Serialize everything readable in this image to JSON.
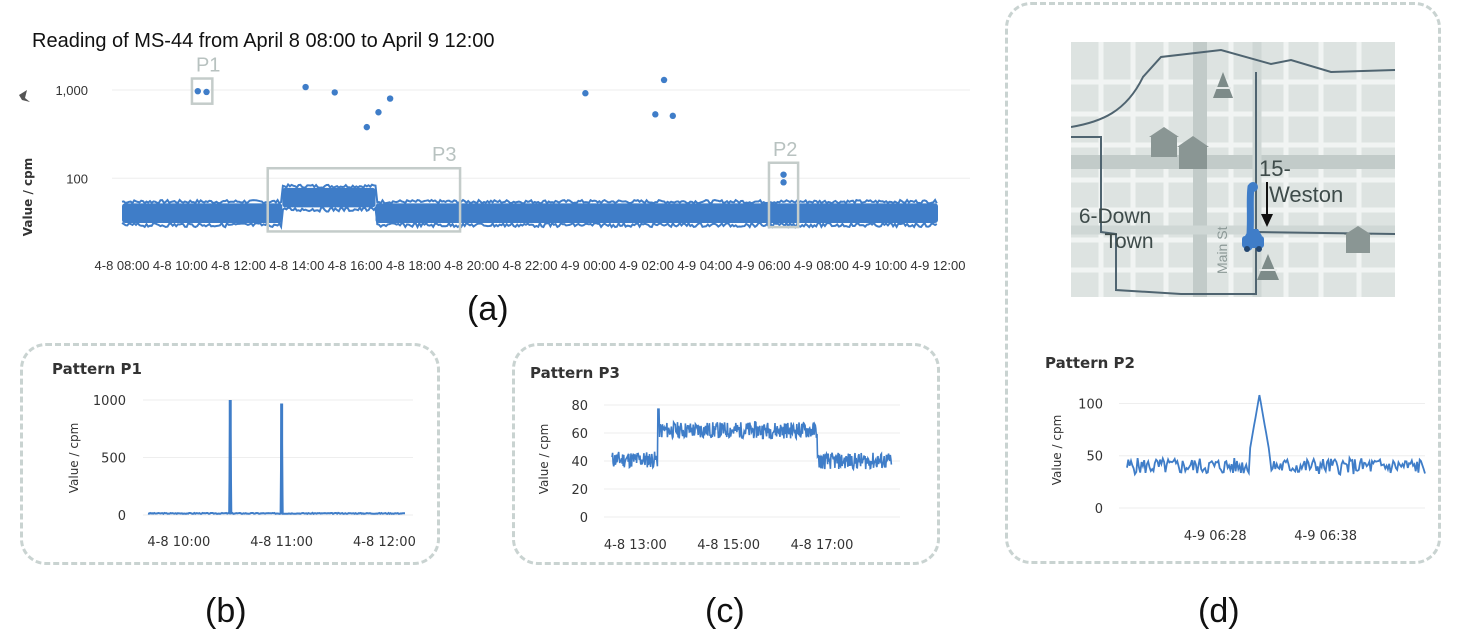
{
  "chart_data": [
    {
      "id": "a",
      "type": "scatter",
      "title": "Reading of MS-44 from April 8 08:00 to April 9 12:00",
      "ylabel": "Value / cpm",
      "y_scale": "log",
      "y_ticks": [
        "100",
        "1,000"
      ],
      "y_tick_values": [
        100,
        1000
      ],
      "x_ticks": [
        "4-8 08:00",
        "4-8 10:00",
        "4-8 12:00",
        "4-8 14:00",
        "4-8 16:00",
        "4-8 18:00",
        "4-8 20:00",
        "4-8 22:00",
        "4-9 00:00",
        "4-9 02:00",
        "4-9 04:00",
        "4-9 06:00",
        "4-9 08:00",
        "4-9 10:00",
        "4-9 12:00"
      ],
      "x_range_hours": [
        0,
        28
      ],
      "ylim": [
        20,
        1600
      ],
      "baseline": [
        {
          "from_hour": 0.0,
          "to_hour": 5.5,
          "value": 40
        },
        {
          "from_hour": 5.5,
          "to_hour": 8.7,
          "value": 60
        },
        {
          "from_hour": 8.7,
          "to_hour": 28.0,
          "value": 40
        }
      ],
      "outliers": [
        {
          "x_hour": 2.6,
          "y": 970
        },
        {
          "x_hour": 2.9,
          "y": 950
        },
        {
          "x_hour": 6.3,
          "y": 1080
        },
        {
          "x_hour": 7.3,
          "y": 940
        },
        {
          "x_hour": 8.4,
          "y": 380
        },
        {
          "x_hour": 8.8,
          "y": 560
        },
        {
          "x_hour": 9.2,
          "y": 800
        },
        {
          "x_hour": 15.9,
          "y": 920
        },
        {
          "x_hour": 18.3,
          "y": 530
        },
        {
          "x_hour": 18.6,
          "y": 1300
        },
        {
          "x_hour": 18.9,
          "y": 510
        },
        {
          "x_hour": 22.7,
          "y": 110
        },
        {
          "x_hour": 22.7,
          "y": 90
        }
      ],
      "highlight_boxes": [
        {
          "label": "P1",
          "from_hour": 2.4,
          "to_hour": 3.1,
          "y_low": 700,
          "y_high": 1350
        },
        {
          "label": "P3",
          "from_hour": 5.0,
          "to_hour": 11.6,
          "y_low": 25,
          "y_high": 130
        },
        {
          "label": "P2",
          "from_hour": 22.2,
          "to_hour": 23.2,
          "y_low": 28,
          "y_high": 150
        }
      ],
      "panel_label": "(a)"
    },
    {
      "id": "b",
      "type": "line",
      "title": "Pattern P1",
      "ylabel": "Value / cpm",
      "y_ticks": [
        "0",
        "500",
        "1000"
      ],
      "y_tick_values": [
        0,
        500,
        1000
      ],
      "ylim": [
        0,
        1000
      ],
      "x_ticks": [
        "4-8 10:00",
        "4-8 11:00",
        "4-8 12:00"
      ],
      "x_tick_values": [
        10.0,
        11.0,
        12.0
      ],
      "x_range_hours": [
        9.7,
        12.2
      ],
      "baseline": 10,
      "spikes": [
        {
          "x_hour": 10.5,
          "y": 1000
        },
        {
          "x_hour": 11.0,
          "y": 970
        }
      ],
      "panel_label": "(b)"
    },
    {
      "id": "c",
      "type": "line",
      "title": "Pattern P3",
      "ylabel": "Value / cpm",
      "y_ticks": [
        "0",
        "20",
        "40",
        "60",
        "80"
      ],
      "y_tick_values": [
        0,
        20,
        40,
        60,
        80
      ],
      "ylim": [
        0,
        80
      ],
      "x_ticks": [
        "4-8 13:00",
        "4-8 15:00",
        "4-8 17:00"
      ],
      "x_tick_values": [
        13.0,
        15.0,
        17.0
      ],
      "x_range_hours": [
        12.5,
        18.5
      ],
      "levels": [
        {
          "from_hour": 12.5,
          "to_hour": 13.5,
          "value": 41
        },
        {
          "from_hour": 13.5,
          "to_hour": 16.9,
          "value": 62
        },
        {
          "from_hour": 16.9,
          "to_hour": 18.5,
          "value": 40
        }
      ],
      "peak": {
        "x_hour": 13.5,
        "y": 77
      },
      "panel_label": "(c)"
    },
    {
      "id": "d",
      "type": "line",
      "title": "Pattern P2",
      "ylabel": "Value / cpm",
      "y_ticks": [
        "0",
        "50",
        "100"
      ],
      "y_tick_values": [
        0,
        50,
        100
      ],
      "ylim": [
        0,
        110
      ],
      "x_ticks": [
        "4-9 06:28",
        "4-9 06:38"
      ],
      "x_tick_values": [
        28,
        38
      ],
      "x_range_minutes": [
        20,
        47
      ],
      "baseline": 40,
      "peak": {
        "x_minute": 32,
        "y": 108
      },
      "panel_label": "(d)"
    }
  ],
  "labels": {
    "p1": "P1",
    "p2": "P2",
    "p3": "P3",
    "panel_a": "(a)",
    "panel_b": "(b)",
    "panel_c": "(c)",
    "panel_d": "(d)"
  },
  "map": {
    "label_downtown_1": "6-Down",
    "label_downtown_2": "Town",
    "label_sensor_1": "15-",
    "label_sensor_2": "Weston",
    "label_street": "Main St",
    "icons": [
      "tent-icon",
      "building-icon",
      "building-icon",
      "car-icon",
      "tent-icon",
      "building-icon",
      "pin-icon"
    ]
  },
  "colors": {
    "series": "#3f7dc8",
    "box": "#c4ccca",
    "dash": "#c9d3d1",
    "map_bg": "#dde3e1"
  }
}
